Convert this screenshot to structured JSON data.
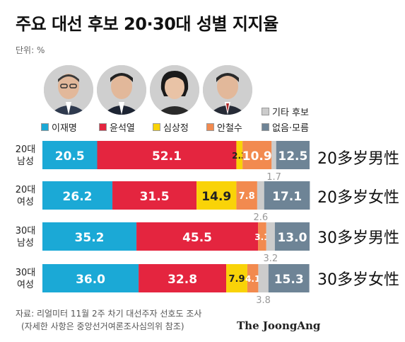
{
  "title": "주요 대선 후보 20·30대 성별 지지율",
  "unit": "단위: %",
  "candidates": [
    {
      "name": "이재명",
      "color": "#1ba9d6",
      "avatar_icon": "candidate-lee-photo"
    },
    {
      "name": "윤석열",
      "color": "#e4253f",
      "avatar_icon": "candidate-yoon-photo"
    },
    {
      "name": "심상정",
      "color": "#f9d308",
      "avatar_icon": "candidate-sim-photo"
    },
    {
      "name": "안철수",
      "color": "#f28a4f",
      "avatar_icon": "candidate-ahn-photo"
    }
  ],
  "others": [
    {
      "name": "기타 후보",
      "color": "#cccccc"
    },
    {
      "name": "없음·모름",
      "color": "#6e8496"
    }
  ],
  "chart_data": {
    "type": "bar",
    "orientation": "horizontal",
    "stacked": true,
    "title": "주요 대선 후보 20·30대 성별 지지율",
    "xlim": [
      0,
      100
    ],
    "categories": [
      "20대\n남성",
      "20대\n여성",
      "30대\n남성",
      "30대\n여성"
    ],
    "series": [
      {
        "name": "이재명",
        "color": "#1ba9d6",
        "values": [
          20.5,
          26.2,
          35.2,
          36.0
        ]
      },
      {
        "name": "윤석열",
        "color": "#e4253f",
        "values": [
          52.1,
          31.5,
          45.5,
          32.8
        ]
      },
      {
        "name": "심상정",
        "color": "#f9d308",
        "values": [
          2.3,
          14.9,
          0.0,
          7.9
        ]
      },
      {
        "name": "안철수",
        "color": "#f28a4f",
        "values": [
          10.9,
          7.8,
          3.1,
          4.1
        ]
      },
      {
        "name": "기타 후보",
        "color": "#cccccc",
        "values": [
          1.7,
          2.6,
          3.2,
          3.8
        ]
      },
      {
        "name": "없음·모름",
        "color": "#6e8496",
        "values": [
          12.5,
          17.1,
          13.0,
          15.3
        ]
      }
    ],
    "legend_position": "top-right",
    "grid": false
  },
  "row_notes": [
    "20多岁男性",
    "20多岁女性",
    "30多岁男性",
    "30多岁女性"
  ],
  "footer": {
    "source": "자료: 리얼미터 11월 2주 차기 대선주자 선호도 조사",
    "note": "(자세한 사항은 중앙선거여론조사심의위 참조)",
    "brand": "The JoongAng"
  }
}
